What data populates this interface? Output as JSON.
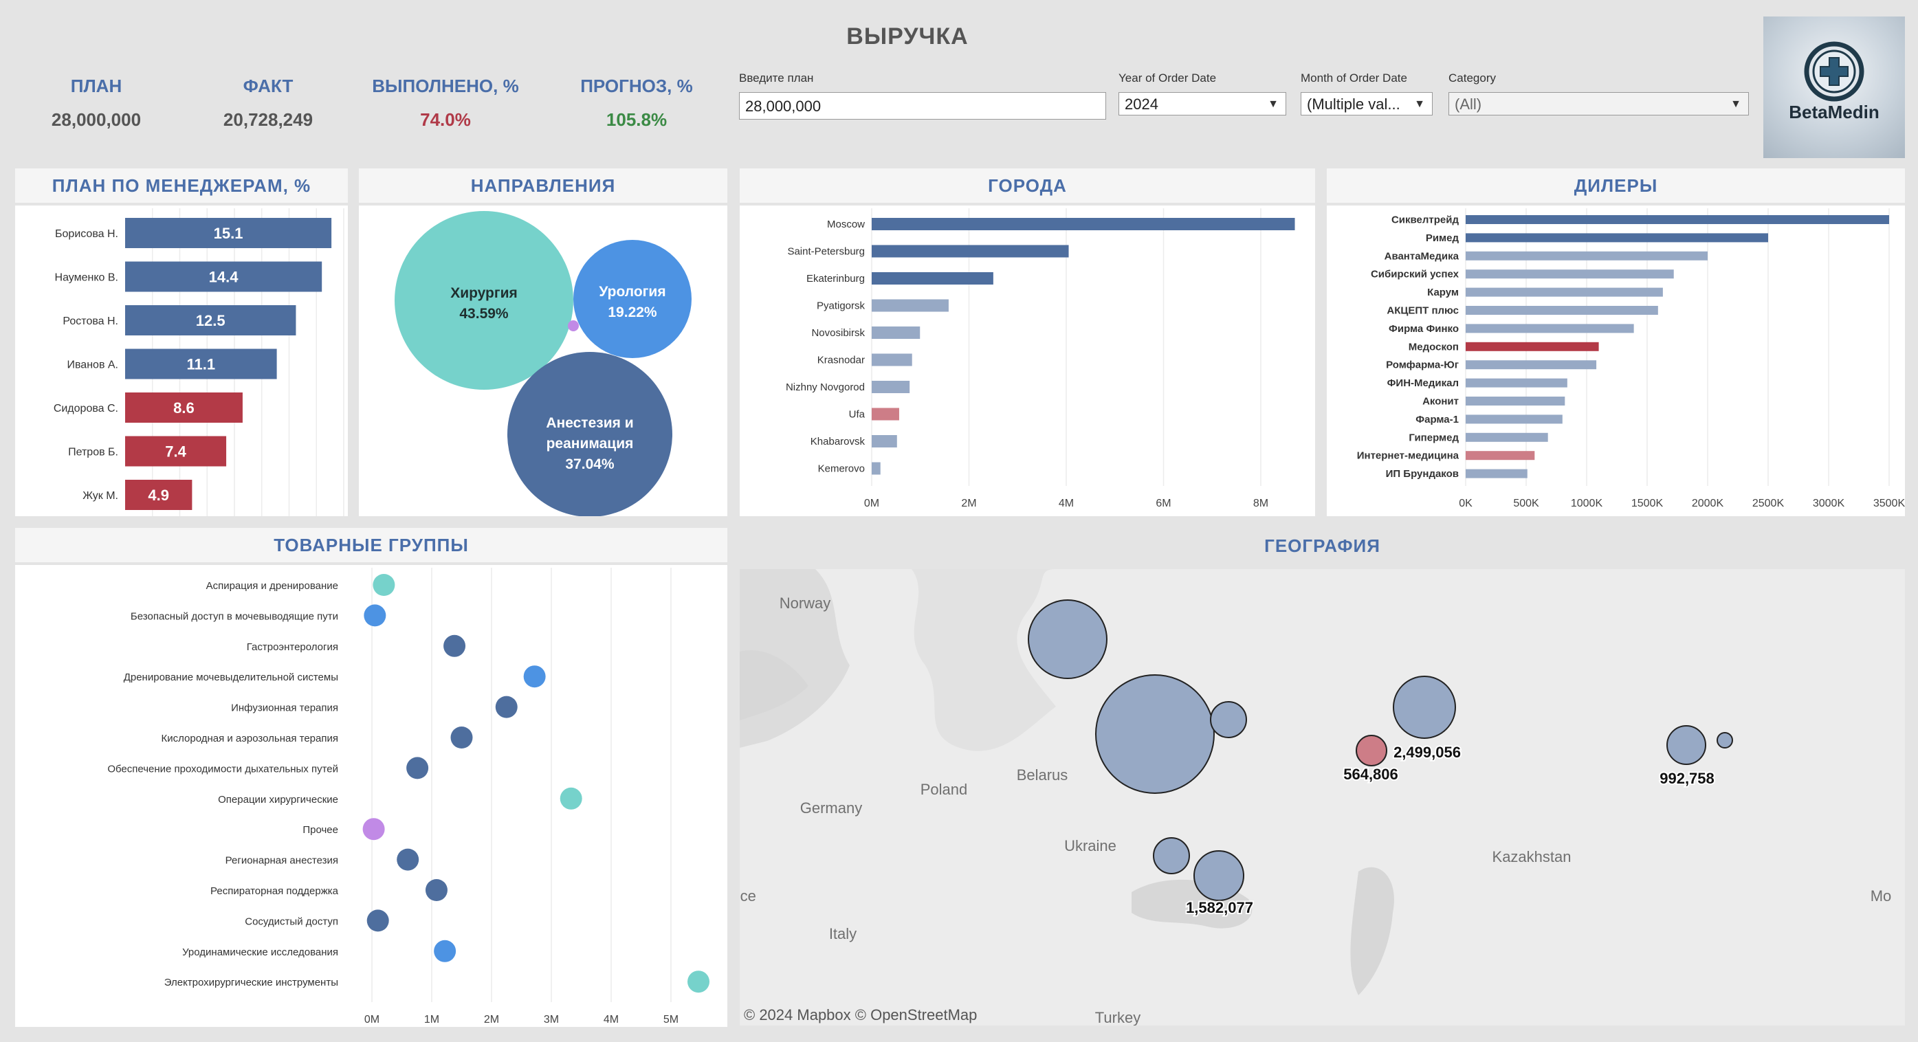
{
  "header": {
    "title": "ВЫРУЧКА",
    "kpis": [
      {
        "label": "ПЛАН",
        "value": "28,000,000",
        "color": "#555555"
      },
      {
        "label": "ФАКТ",
        "value": "20,728,249",
        "color": "#555555"
      },
      {
        "label": "ВЫПОЛНЕНО, %",
        "value": "74.0%",
        "color": "#b03a48"
      },
      {
        "label": "ПРОГНОЗ, %",
        "value": "105.8%",
        "color": "#3b8a45"
      }
    ]
  },
  "filters": {
    "plan": {
      "label": "Введите план",
      "value": "28,000,000"
    },
    "year": {
      "label": "Year of Order Date",
      "value": "2024"
    },
    "month": {
      "label": "Month of Order Date",
      "value": "(Multiple val..."
    },
    "category": {
      "label": "Category",
      "value": "(All)"
    }
  },
  "logo": {
    "text": "BetaMedin",
    "icon": "medical-cross-icon"
  },
  "colors": {
    "blue": "#4e6e9e",
    "red": "#b33a47",
    "light_blue": "#97a9c5",
    "light_red": "#cd7d87",
    "teal": "#76d2cb",
    "bright_blue": "#4d93e3",
    "purple": "#c18ae6"
  },
  "panels": {
    "managers": "ПЛАН ПО МЕНЕДЖЕРАМ, %",
    "directions": "НАПРАВЛЕНИЯ",
    "cities": "ГОРОДА",
    "dealers": "ДИЛЕРЫ",
    "product_groups": "ТОВАРНЫЕ ГРУППЫ",
    "geography": "ГЕОГРАФИЯ"
  },
  "chart_data": [
    {
      "id": "managers",
      "type": "bar",
      "orientation": "horizontal",
      "categories": [
        "Борисова Н.",
        "Науменко В.",
        "Ростова Н.",
        "Иванов А.",
        "Сидорова С.",
        "Петров Б.",
        "Жук М."
      ],
      "values": [
        15.1,
        14.4,
        12.5,
        11.1,
        8.6,
        7.4,
        4.9
      ],
      "labels": [
        "15.1",
        "14.4",
        "12.5",
        "11.1",
        "8.6",
        "7.4",
        "4.9"
      ],
      "colors": [
        "blue",
        "blue",
        "blue",
        "blue",
        "red",
        "red",
        "red"
      ],
      "xlim": [
        0,
        16
      ]
    },
    {
      "id": "directions",
      "type": "bubble",
      "items": [
        {
          "name": "Хирургия",
          "pct": "43.59%",
          "value": 43.59,
          "color": "teal"
        },
        {
          "name": "Урология",
          "pct": "19.22%",
          "value": 19.22,
          "color": "bright_blue"
        },
        {
          "name": "Анестезия и",
          "name2": "реанимация",
          "pct": "37.04%",
          "value": 37.04,
          "color": "blue"
        },
        {
          "name": "",
          "pct": "",
          "value": 0.15,
          "color": "purple"
        }
      ]
    },
    {
      "id": "cities",
      "type": "bar",
      "orientation": "horizontal",
      "categories": [
        "Moscow",
        "Saint-Petersburg",
        "Ekaterinburg",
        "Pyatigorsk",
        "Novosibirsk",
        "Krasnodar",
        "Nizhny Novgorod",
        "Ufa",
        "Khabarovsk",
        "Kemerovo"
      ],
      "values": [
        8700000,
        4050000,
        2500000,
        1582077,
        992758,
        830000,
        780000,
        564806,
        520000,
        180000
      ],
      "colors": [
        "blue",
        "blue",
        "blue",
        "light_blue",
        "light_blue",
        "light_blue",
        "light_blue",
        "light_red",
        "light_blue",
        "light_blue"
      ],
      "xticks": [
        "0M",
        "2M",
        "4M",
        "6M",
        "8M"
      ],
      "xlim": [
        0,
        9000000
      ]
    },
    {
      "id": "dealers",
      "type": "bar",
      "orientation": "horizontal",
      "categories": [
        "Сиквелтрейд",
        "Римед",
        "АвантаМедика",
        "Сибирский успех",
        "Карум",
        "АКЦЕПТ плюс",
        "Фирма Финко",
        "Медоскоп",
        "Ромфарма-Юг",
        "ФИН-Медикал",
        "Аконит",
        "Фарма-1",
        "Гипермед",
        "Интернет-медицина",
        "ИП Брундаков"
      ],
      "values": [
        3500000,
        2500000,
        2000000,
        1720000,
        1630000,
        1590000,
        1390000,
        1100000,
        1080000,
        840000,
        820000,
        800000,
        680000,
        570000,
        510000
      ],
      "colors": [
        "blue",
        "blue",
        "light_blue",
        "light_blue",
        "light_blue",
        "light_blue",
        "light_blue",
        "red",
        "light_blue",
        "light_blue",
        "light_blue",
        "light_blue",
        "light_blue",
        "light_red",
        "light_blue"
      ],
      "xticks": [
        "0K",
        "500K",
        "1000K",
        "1500K",
        "2000K",
        "2500K",
        "3000K",
        "3500K"
      ],
      "xlim": [
        0,
        3500000
      ]
    },
    {
      "id": "product_groups",
      "type": "scatter",
      "categories": [
        "Аспирация и дренирование",
        "Безопасный доступ в мочевыводящие пути",
        "Гастроэнтерология",
        "Дренирование мочевыделительной системы",
        "Инфузионная терапия",
        "Кислородная и аэрозольная терапия",
        "Обеспечение проходимости дыхательных путей",
        "Операции хирургические",
        "Прочее",
        "Регионарная анестезия",
        "Респираторная поддержка",
        "Сосудистый доступ",
        "Уродинамические исследования",
        "Электрохирургические инструменты"
      ],
      "values": [
        200000,
        50000,
        1380000,
        2720000,
        2250000,
        1500000,
        760000,
        3330000,
        30000,
        600000,
        1080000,
        100000,
        1220000,
        5460000
      ],
      "colors": [
        "teal",
        "bright_blue",
        "blue",
        "bright_blue",
        "blue",
        "blue",
        "blue",
        "teal",
        "purple",
        "blue",
        "blue",
        "blue",
        "bright_blue",
        "teal"
      ],
      "xticks": [
        "0M",
        "1M",
        "2M",
        "3M",
        "4M",
        "5M"
      ],
      "xlim": [
        0,
        5900000
      ]
    },
    {
      "id": "geography",
      "type": "bubble-map",
      "credit": "© 2024 Mapbox  © OpenStreetMap",
      "place_labels": [
        "Norway",
        "Poland",
        "Belarus",
        "Germany",
        "Ukraine",
        "Kazakhstan",
        "Italy",
        "ance",
        "Turkey",
        "Mo"
      ],
      "points": [
        {
          "city": "Saint-Petersburg",
          "value": 4050000,
          "label": ""
        },
        {
          "city": "Moscow",
          "value": 8700000,
          "label": ""
        },
        {
          "city": "Nizhny Novgorod",
          "value": 780000,
          "label": ""
        },
        {
          "city": "Ekaterinburg",
          "value": 2499056,
          "label": "2,499,056"
        },
        {
          "city": "Ufa",
          "value": 564806,
          "label": "564,806"
        },
        {
          "city": "Novosibirsk",
          "value": 992758,
          "label": "992,758"
        },
        {
          "city": "Kemerovo",
          "value": 180000,
          "label": ""
        },
        {
          "city": "Krasnodar",
          "value": 830000,
          "label": ""
        },
        {
          "city": "Pyatigorsk",
          "value": 1582077,
          "label": "1,582,077"
        }
      ]
    }
  ]
}
